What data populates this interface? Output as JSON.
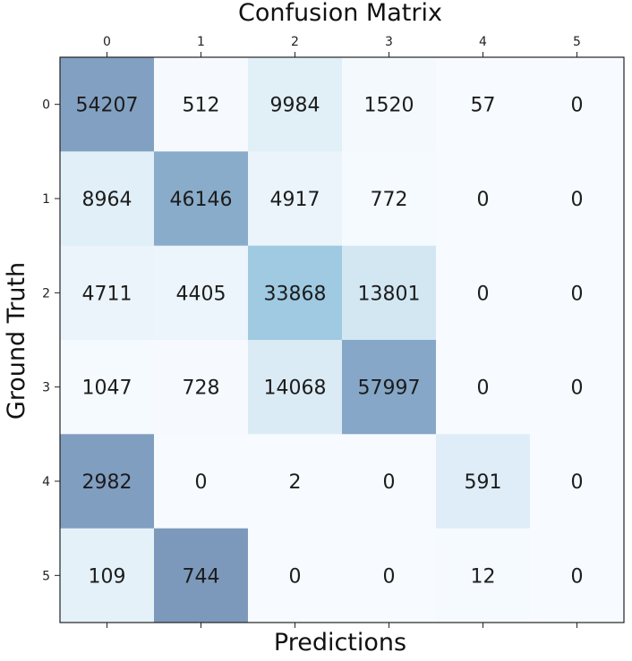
{
  "chart_data": {
    "type": "heatmap",
    "title": "Confusion Matrix",
    "xlabel": "Predictions",
    "ylabel": "Ground Truth",
    "x_tick_position": "top",
    "columns": [
      "0",
      "1",
      "2",
      "3",
      "4",
      "5"
    ],
    "rows": [
      "0",
      "1",
      "2",
      "3",
      "4",
      "5"
    ],
    "values": [
      [
        54207,
        512,
        9984,
        1520,
        57,
        0
      ],
      [
        8964,
        46146,
        4917,
        772,
        0,
        0
      ],
      [
        4711,
        4405,
        33868,
        13801,
        0,
        0
      ],
      [
        1047,
        728,
        14068,
        57997,
        0,
        0
      ],
      [
        2982,
        0,
        2,
        0,
        591,
        0
      ],
      [
        109,
        744,
        0,
        0,
        12,
        0
      ]
    ],
    "colormap": "row-normalized blues",
    "colors": {
      "low": "#f7fbff",
      "mid": "#9ecae1",
      "high": "#6a7fa8"
    },
    "grid": false
  }
}
